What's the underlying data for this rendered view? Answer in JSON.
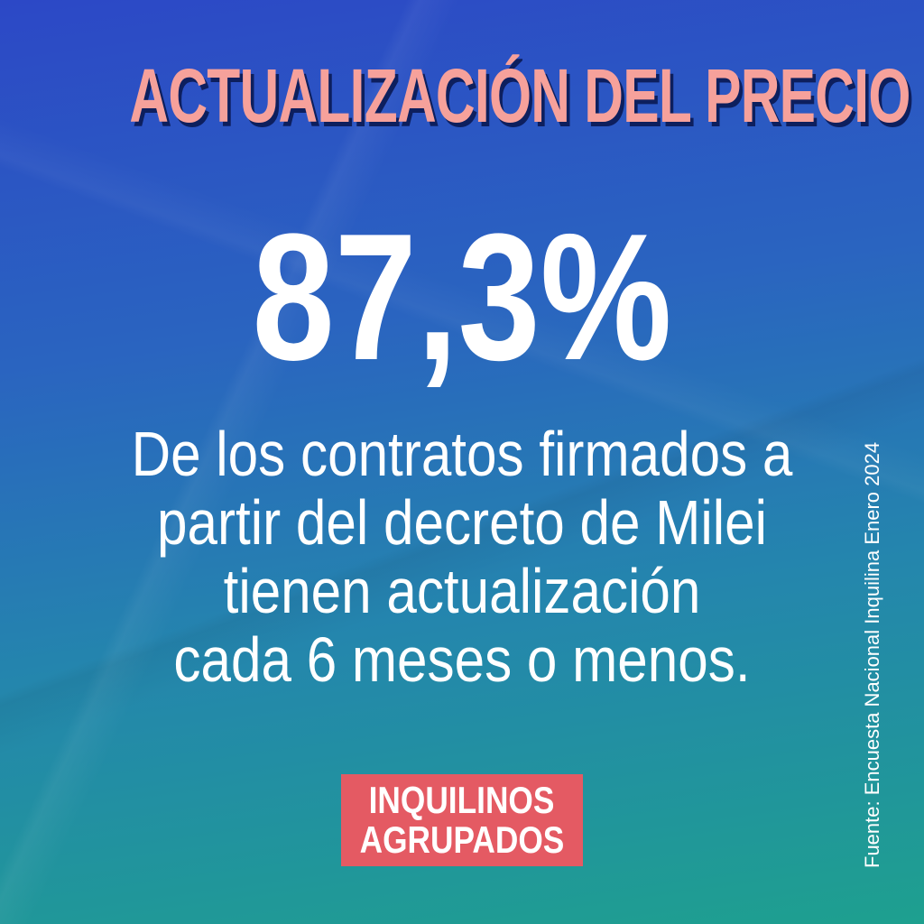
{
  "header": {
    "title": "ACTUALIZACIÓN DEL PRECIO"
  },
  "stat": {
    "value": "87,3%"
  },
  "description": {
    "lines": [
      "De los contratos firmados a",
      "partir del decreto de Milei",
      "tienen actualización",
      "cada 6 meses o menos."
    ]
  },
  "source": {
    "text": "Fuente: Encuesta Nacional Inquilina Enero 2024"
  },
  "logo": {
    "line1": "INQUILINOS",
    "line2": "AGRUPADOS"
  },
  "colors": {
    "title": "#f6a19b",
    "title_shadow": "#0d1f5e",
    "logo_bg": "#e45a63",
    "gradient_top": "#2c48c6",
    "gradient_bottom": "#1ea08f"
  }
}
